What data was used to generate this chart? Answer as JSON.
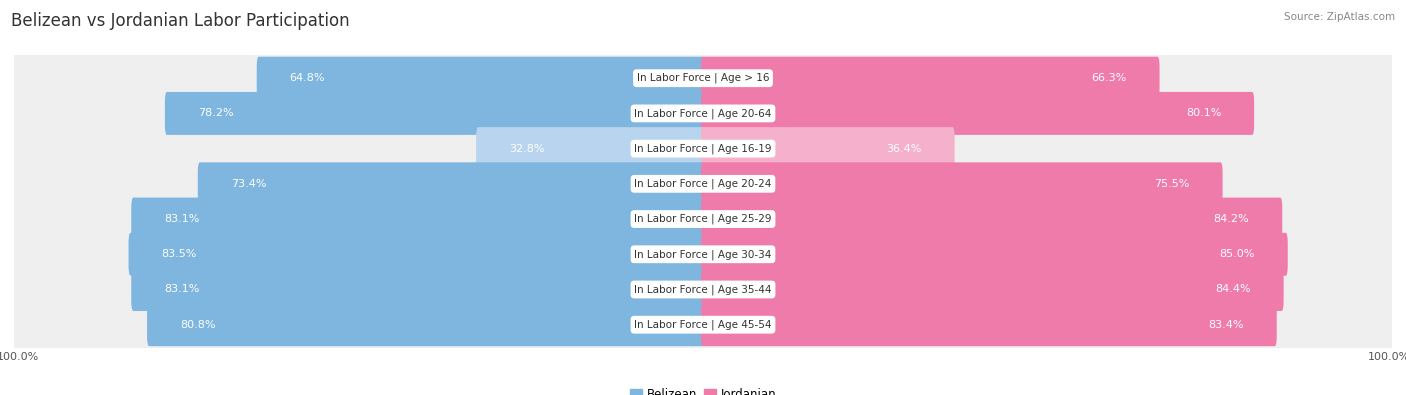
{
  "title": "Belizean vs Jordanian Labor Participation",
  "source": "Source: ZipAtlas.com",
  "categories": [
    "In Labor Force | Age > 16",
    "In Labor Force | Age 20-64",
    "In Labor Force | Age 16-19",
    "In Labor Force | Age 20-24",
    "In Labor Force | Age 25-29",
    "In Labor Force | Age 30-34",
    "In Labor Force | Age 35-44",
    "In Labor Force | Age 45-54"
  ],
  "belizean_values": [
    64.8,
    78.2,
    32.8,
    73.4,
    83.1,
    83.5,
    83.1,
    80.8
  ],
  "jordanian_values": [
    66.3,
    80.1,
    36.4,
    75.5,
    84.2,
    85.0,
    84.4,
    83.4
  ],
  "belizean_color": "#7EB6E0",
  "belizean_color_light": "#B8D4EE",
  "jordanian_color": "#EF7BAA",
  "jordanian_color_light": "#F5B0CB",
  "bg_row_color": "#EFEFEF",
  "bg_row_alt": "#E8E8E8",
  "max_value": 100.0,
  "bar_height": 0.62,
  "legend_belizean": "Belizean",
  "legend_jordanian": "Jordanian",
  "title_fontsize": 12,
  "label_fontsize": 8,
  "category_fontsize": 7.5,
  "axis_label_fontsize": 8
}
